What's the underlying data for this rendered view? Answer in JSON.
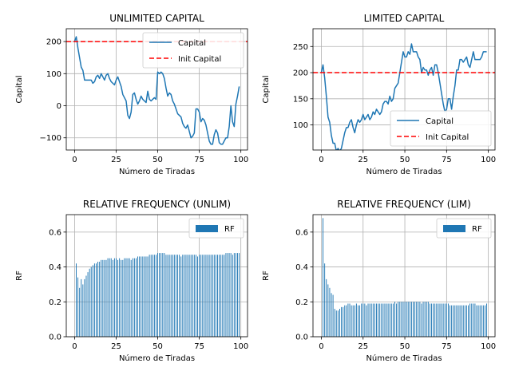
{
  "chart_data": [
    {
      "type": "line",
      "title": "UNLIMITED CAPITAL",
      "xlabel": "Número de Tiradas",
      "ylabel": "Capital",
      "xlim": [
        -5,
        104
      ],
      "ylim": [
        -138,
        240
      ],
      "xticks": [
        0,
        25,
        50,
        75,
        100
      ],
      "yticks": [
        -100,
        0,
        100,
        200
      ],
      "grid": true,
      "legend_position": "upper-right",
      "series": [
        {
          "name": "Capital",
          "color": "#1f77b4",
          "style": "solid",
          "x": [
            0,
            1,
            2,
            3,
            4,
            5,
            6,
            7,
            8,
            9,
            10,
            11,
            12,
            13,
            14,
            15,
            16,
            17,
            18,
            19,
            20,
            21,
            22,
            23,
            24,
            25,
            26,
            27,
            28,
            29,
            30,
            31,
            32,
            33,
            34,
            35,
            36,
            37,
            38,
            39,
            40,
            41,
            42,
            43,
            44,
            45,
            46,
            47,
            48,
            49,
            50,
            51,
            52,
            53,
            54,
            55,
            56,
            57,
            58,
            59,
            60,
            61,
            62,
            63,
            64,
            65,
            66,
            67,
            68,
            69,
            70,
            71,
            72,
            73,
            74,
            75,
            76,
            77,
            78,
            79,
            80,
            81,
            82,
            83,
            84,
            85,
            86,
            87,
            88,
            89,
            90,
            91,
            92,
            93,
            94,
            95,
            96,
            97,
            98,
            99
          ],
          "values": [
            200,
            215,
            180,
            150,
            120,
            110,
            80,
            80,
            80,
            80,
            80,
            70,
            75,
            90,
            95,
            85,
            100,
            90,
            80,
            95,
            100,
            85,
            75,
            70,
            65,
            80,
            90,
            75,
            60,
            35,
            25,
            15,
            -30,
            -40,
            -20,
            35,
            40,
            20,
            5,
            15,
            30,
            20,
            15,
            10,
            45,
            20,
            15,
            20,
            25,
            20,
            105,
            100,
            105,
            100,
            85,
            55,
            30,
            40,
            35,
            15,
            5,
            -10,
            -25,
            -30,
            -35,
            -55,
            -65,
            -70,
            -60,
            -80,
            -100,
            -95,
            -85,
            -10,
            -10,
            -20,
            -50,
            -40,
            -45,
            -60,
            -85,
            -110,
            -120,
            -120,
            -90,
            -75,
            -85,
            -115,
            -120,
            -120,
            -110,
            -100,
            -100,
            -65,
            0,
            -50,
            -65,
            5,
            30,
            60
          ]
        },
        {
          "name": "Init Capital",
          "color": "#ff0000",
          "style": "dashed",
          "value": 200
        }
      ]
    },
    {
      "type": "line",
      "title": "LIMITED CAPITAL",
      "xlabel": "Número de Tiradas",
      "ylabel": "Capital",
      "xlim": [
        -5,
        104
      ],
      "ylim": [
        52,
        284
      ],
      "xticks": [
        0,
        25,
        50,
        75,
        100
      ],
      "yticks": [
        100,
        150,
        200,
        250
      ],
      "grid": true,
      "legend_position": "lower-right",
      "series": [
        {
          "name": "Capital",
          "color": "#1f77b4",
          "style": "solid",
          "x": [
            0,
            1,
            2,
            3,
            4,
            5,
            6,
            7,
            8,
            9,
            10,
            11,
            12,
            13,
            14,
            15,
            16,
            17,
            18,
            19,
            20,
            21,
            22,
            23,
            24,
            25,
            26,
            27,
            28,
            29,
            30,
            31,
            32,
            33,
            34,
            35,
            36,
            37,
            38,
            39,
            40,
            41,
            42,
            43,
            44,
            45,
            46,
            47,
            48,
            49,
            50,
            51,
            52,
            53,
            54,
            55,
            56,
            57,
            58,
            59,
            60,
            61,
            62,
            63,
            64,
            65,
            66,
            67,
            68,
            69,
            70,
            71,
            72,
            73,
            74,
            75,
            76,
            77,
            78,
            79,
            80,
            81,
            82,
            83,
            84,
            85,
            86,
            87,
            88,
            89,
            90,
            91,
            92,
            93,
            94,
            95,
            96,
            97,
            98,
            99
          ],
          "values": [
            200,
            215,
            190,
            155,
            115,
            105,
            80,
            65,
            65,
            50,
            55,
            50,
            55,
            70,
            85,
            95,
            95,
            105,
            110,
            95,
            85,
            100,
            110,
            105,
            110,
            120,
            110,
            115,
            120,
            110,
            115,
            125,
            120,
            130,
            125,
            120,
            125,
            140,
            145,
            145,
            140,
            155,
            145,
            150,
            170,
            175,
            180,
            200,
            220,
            240,
            230,
            230,
            240,
            235,
            255,
            240,
            240,
            240,
            230,
            225,
            200,
            210,
            205,
            205,
            195,
            205,
            210,
            195,
            215,
            215,
            200,
            180,
            160,
            140,
            125,
            130,
            150,
            150,
            130,
            155,
            175,
            205,
            205,
            225,
            225,
            220,
            225,
            230,
            215,
            210,
            225,
            240,
            225,
            225,
            225,
            225,
            230,
            240,
            240,
            240
          ]
        },
        {
          "name": "Init Capital",
          "color": "#ff0000",
          "style": "dashed",
          "value": 200
        }
      ]
    },
    {
      "type": "bar",
      "title": "RELATIVE FREQUENCY (UNLIM)",
      "xlabel": "Número de Tiradas",
      "ylabel": "RF",
      "xlim": [
        -5,
        104
      ],
      "ylim": [
        0,
        0.7
      ],
      "xticks": [
        0,
        25,
        50,
        75,
        100
      ],
      "yticks": [
        0.0,
        0.2,
        0.4,
        0.6
      ],
      "grid": true,
      "legend_position": "upper-right",
      "series": [
        {
          "name": "RF",
          "color": "#1f77b4",
          "x": [
            1,
            2,
            3,
            4,
            5,
            6,
            7,
            8,
            9,
            10,
            11,
            12,
            13,
            14,
            15,
            16,
            17,
            18,
            19,
            20,
            21,
            22,
            23,
            24,
            25,
            26,
            27,
            28,
            29,
            30,
            31,
            32,
            33,
            34,
            35,
            36,
            37,
            38,
            39,
            40,
            41,
            42,
            43,
            44,
            45,
            46,
            47,
            48,
            49,
            50,
            51,
            52,
            53,
            54,
            55,
            56,
            57,
            58,
            59,
            60,
            61,
            62,
            63,
            64,
            65,
            66,
            67,
            68,
            69,
            70,
            71,
            72,
            73,
            74,
            75,
            76,
            77,
            78,
            79,
            80,
            81,
            82,
            83,
            84,
            85,
            86,
            87,
            88,
            89,
            90,
            91,
            92,
            93,
            94,
            95,
            96,
            97,
            98,
            99
          ],
          "values": [
            0.42,
            0.34,
            0.28,
            0.33,
            0.3,
            0.33,
            0.35,
            0.37,
            0.39,
            0.4,
            0.41,
            0.42,
            0.42,
            0.43,
            0.43,
            0.44,
            0.44,
            0.44,
            0.44,
            0.45,
            0.45,
            0.45,
            0.44,
            0.45,
            0.45,
            0.44,
            0.45,
            0.44,
            0.44,
            0.45,
            0.45,
            0.45,
            0.45,
            0.44,
            0.45,
            0.45,
            0.45,
            0.46,
            0.46,
            0.46,
            0.46,
            0.46,
            0.46,
            0.46,
            0.47,
            0.47,
            0.47,
            0.47,
            0.47,
            0.48,
            0.48,
            0.48,
            0.48,
            0.48,
            0.47,
            0.47,
            0.47,
            0.47,
            0.47,
            0.47,
            0.47,
            0.47,
            0.47,
            0.46,
            0.47,
            0.47,
            0.47,
            0.47,
            0.47,
            0.47,
            0.47,
            0.47,
            0.47,
            0.46,
            0.47,
            0.47,
            0.47,
            0.47,
            0.47,
            0.47,
            0.47,
            0.47,
            0.47,
            0.47,
            0.47,
            0.47,
            0.47,
            0.47,
            0.47,
            0.47,
            0.48,
            0.48,
            0.48,
            0.48,
            0.47,
            0.48,
            0.48,
            0.48,
            0.48
          ]
        }
      ]
    },
    {
      "type": "bar",
      "title": "RELATIVE FREQUENCY (LIM)",
      "xlabel": "Número de Tiradas",
      "ylabel": "RF",
      "xlim": [
        -5,
        104
      ],
      "ylim": [
        0,
        0.7
      ],
      "xticks": [
        0,
        25,
        50,
        75,
        100
      ],
      "yticks": [
        0.0,
        0.2,
        0.4,
        0.6
      ],
      "grid": true,
      "legend_position": "upper-right",
      "series": [
        {
          "name": "RF",
          "color": "#1f77b4",
          "x": [
            1,
            2,
            3,
            4,
            5,
            6,
            7,
            8,
            9,
            10,
            11,
            12,
            13,
            14,
            15,
            16,
            17,
            18,
            19,
            20,
            21,
            22,
            23,
            24,
            25,
            26,
            27,
            28,
            29,
            30,
            31,
            32,
            33,
            34,
            35,
            36,
            37,
            38,
            39,
            40,
            41,
            42,
            43,
            44,
            45,
            46,
            47,
            48,
            49,
            50,
            51,
            52,
            53,
            54,
            55,
            56,
            57,
            58,
            59,
            60,
            61,
            62,
            63,
            64,
            65,
            66,
            67,
            68,
            69,
            70,
            71,
            72,
            73,
            74,
            75,
            76,
            77,
            78,
            79,
            80,
            81,
            82,
            83,
            84,
            85,
            86,
            87,
            88,
            89,
            90,
            91,
            92,
            93,
            94,
            95,
            96,
            97,
            98,
            99
          ],
          "values": [
            0.68,
            0.42,
            0.33,
            0.3,
            0.28,
            0.25,
            0.24,
            0.16,
            0.15,
            0.15,
            0.16,
            0.17,
            0.17,
            0.18,
            0.18,
            0.19,
            0.19,
            0.18,
            0.18,
            0.18,
            0.19,
            0.18,
            0.18,
            0.19,
            0.19,
            0.19,
            0.18,
            0.19,
            0.19,
            0.19,
            0.19,
            0.19,
            0.19,
            0.19,
            0.19,
            0.19,
            0.19,
            0.19,
            0.19,
            0.19,
            0.19,
            0.19,
            0.19,
            0.2,
            0.19,
            0.2,
            0.2,
            0.2,
            0.2,
            0.2,
            0.2,
            0.2,
            0.2,
            0.2,
            0.2,
            0.2,
            0.2,
            0.2,
            0.2,
            0.19,
            0.2,
            0.2,
            0.2,
            0.2,
            0.19,
            0.19,
            0.19,
            0.19,
            0.19,
            0.19,
            0.19,
            0.19,
            0.19,
            0.19,
            0.19,
            0.19,
            0.18,
            0.18,
            0.18,
            0.18,
            0.18,
            0.18,
            0.18,
            0.18,
            0.18,
            0.18,
            0.18,
            0.18,
            0.19,
            0.19,
            0.19,
            0.19,
            0.18,
            0.18,
            0.18,
            0.18,
            0.18,
            0.18,
            0.19
          ]
        }
      ]
    }
  ]
}
